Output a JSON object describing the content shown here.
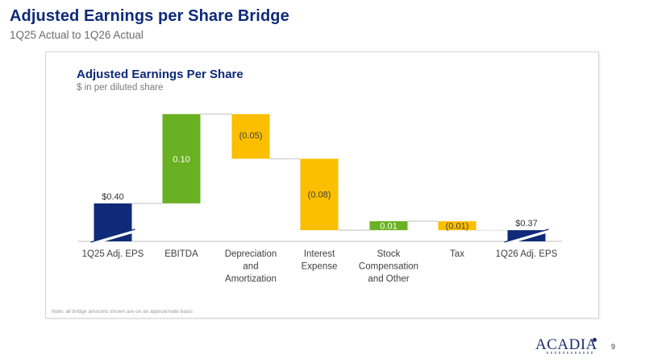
{
  "slide": {
    "title": "Adjusted Earnings per Share Bridge",
    "subtitle": "1Q25 Actual to 1Q26 Actual",
    "footnote": "Note: all bridge amounts shown are on an approximate basis",
    "page_number": "9",
    "logo_text": "ACADIA"
  },
  "chart_data": {
    "type": "bar",
    "subtype": "waterfall",
    "title": "Adjusted Earnings Per Share",
    "subtitle": "$ in per diluted share",
    "categories": [
      [
        "1Q25 Adj. EPS"
      ],
      [
        "EBITDA"
      ],
      [
        "Depreciation",
        "and",
        "Amortization"
      ],
      [
        "Interest",
        "Expense"
      ],
      [
        "Stock",
        "Compensation",
        "and Other"
      ],
      [
        "Tax"
      ],
      [
        "1Q26 Adj. EPS"
      ]
    ],
    "values": [
      0.4,
      0.1,
      -0.05,
      -0.08,
      0.01,
      -0.01,
      0.37
    ],
    "bar_kinds": [
      "total",
      "increase",
      "decrease",
      "decrease",
      "increase",
      "decrease",
      "total"
    ],
    "data_labels": [
      "$0.40",
      "0.10",
      "(0.05)",
      "(0.08)",
      "0.01",
      "(0.01)",
      "$0.37"
    ],
    "axis_break": true,
    "grid": false,
    "colors": {
      "total": "#0e2a78",
      "increase": "#6ab023",
      "decrease": "#fbbf00",
      "connector": "#bfbfbf",
      "baseline": "#bfbfbf"
    }
  }
}
